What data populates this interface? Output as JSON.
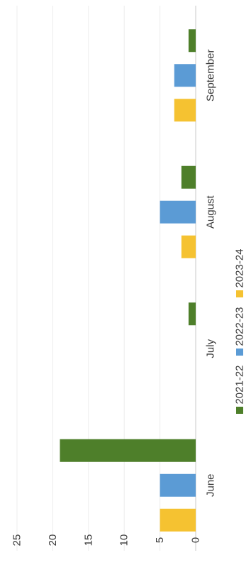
{
  "chart_data": {
    "type": "bar",
    "orientation": "vertical-bars-rotated-90deg-clockwise",
    "categories": [
      "June",
      "July",
      "August",
      "September"
    ],
    "series": [
      {
        "name": "2021-22",
        "values": [
          19,
          1,
          2,
          1
        ],
        "color": "#4e7f2a"
      },
      {
        "name": "2022-23",
        "values": [
          5,
          0,
          5,
          3
        ],
        "color": "#5b9bd5"
      },
      {
        "name": "2023-24",
        "values": [
          5,
          0,
          2,
          3
        ],
        "color": "#f5c231"
      }
    ],
    "ylim": [
      0,
      25
    ],
    "yticks": [
      "0",
      "5",
      "10",
      "15",
      "20",
      "25"
    ],
    "grid": true,
    "legend_position": "bottom"
  }
}
